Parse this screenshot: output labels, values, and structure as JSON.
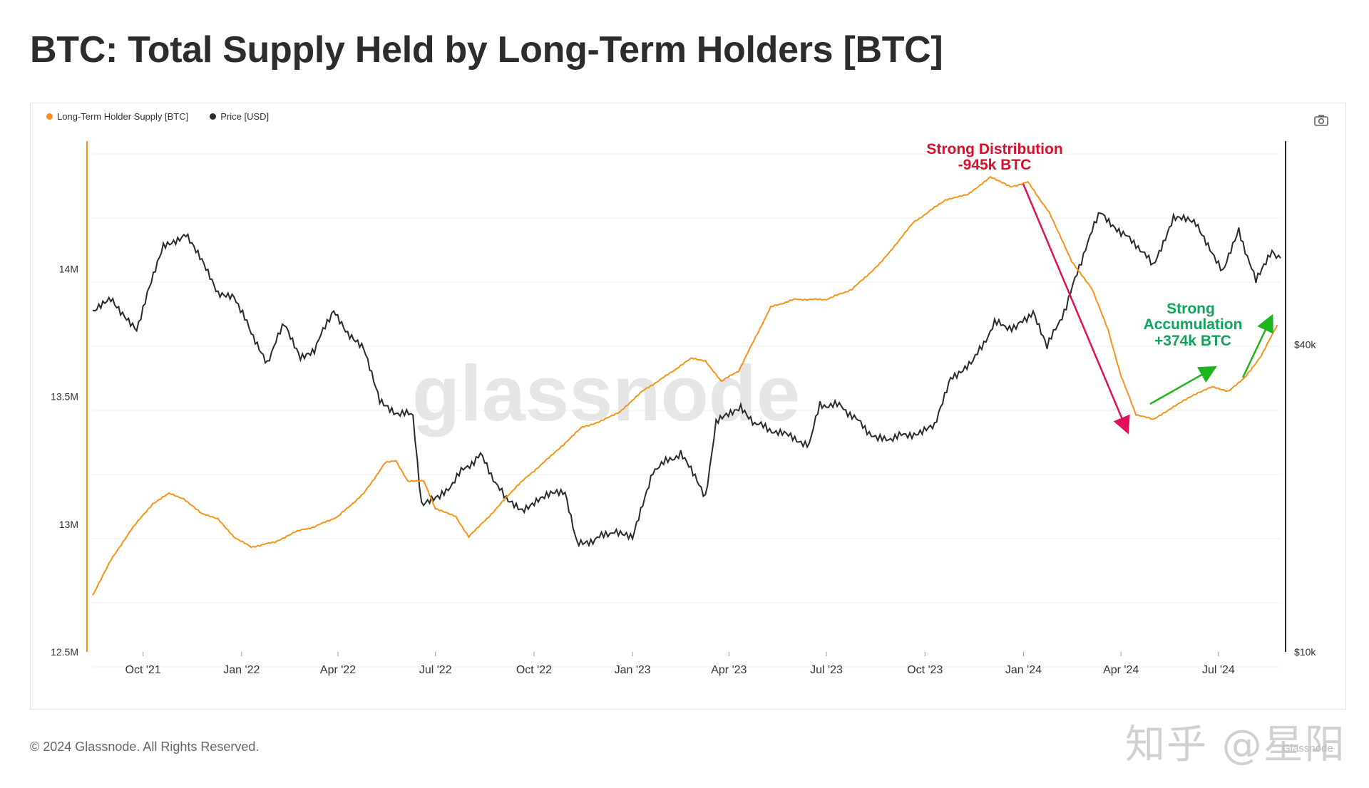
{
  "title": "BTC: Total Supply Held by Long-Term Holders [BTC]",
  "footer": "© 2024 Glassnode. All Rights Reserved.",
  "brand": "Glassnode",
  "watermark": "glassnode",
  "overlay_watermark": "知乎 @星阳",
  "camera_icon": "camera-icon",
  "colors": {
    "lth_supply": "#f7931a",
    "price": "#2b2b2b",
    "distribution": "#e0105a",
    "accumulation": "#1fb51f",
    "dist_text": "#d90f2a",
    "acc_text": "#12a35a"
  },
  "legend": [
    {
      "label": "Long-Term Holder Supply [BTC]",
      "color": "#f7931a"
    },
    {
      "label": "Price [USD]",
      "color": "#2b2b2b"
    }
  ],
  "annotations": {
    "distribution": [
      "Strong Distribution",
      "-945k BTC"
    ],
    "accumulation": [
      "Strong",
      "Accumulation",
      "+374k BTC"
    ]
  },
  "chart_data": {
    "type": "line",
    "x_ticks": [
      "Oct '21",
      "Jan '22",
      "Apr '22",
      "Jul '22",
      "Oct '22",
      "Jan '23",
      "Apr '23",
      "Jul '23",
      "Oct '23",
      "Jan '24",
      "Apr '24",
      "Jul '24"
    ],
    "y_left_ticks": [
      "12.5M",
      "13M",
      "13.5M",
      "14M"
    ],
    "y_left_range": [
      12.5,
      14.5
    ],
    "y_right_ticks": [
      "$10k",
      "$40k"
    ],
    "y_right_range": [
      10000,
      100000
    ],
    "y_right_scale": "log",
    "x_range": [
      "2021-08-15",
      "2024-08-28"
    ],
    "series": [
      {
        "name": "Long-Term Holder Supply [BTC]",
        "axis": "left",
        "points": [
          [
            "2021-08-15",
            12.72
          ],
          [
            "2021-09-01",
            12.86
          ],
          [
            "2021-09-20",
            12.98
          ],
          [
            "2021-10-10",
            13.08
          ],
          [
            "2021-10-25",
            13.12
          ],
          [
            "2021-11-08",
            13.1
          ],
          [
            "2021-11-25",
            13.04
          ],
          [
            "2021-12-10",
            13.02
          ],
          [
            "2021-12-25",
            12.95
          ],
          [
            "2022-01-10",
            12.91
          ],
          [
            "2022-02-01",
            12.93
          ],
          [
            "2022-02-20",
            12.97
          ],
          [
            "2022-03-10",
            12.99
          ],
          [
            "2022-04-01",
            13.03
          ],
          [
            "2022-04-25",
            13.12
          ],
          [
            "2022-05-15",
            13.24
          ],
          [
            "2022-05-25",
            13.25
          ],
          [
            "2022-06-05",
            13.17
          ],
          [
            "2022-06-20",
            13.17
          ],
          [
            "2022-07-01",
            13.06
          ],
          [
            "2022-07-20",
            13.03
          ],
          [
            "2022-08-01",
            12.95
          ],
          [
            "2022-08-20",
            13.03
          ],
          [
            "2022-09-15",
            13.15
          ],
          [
            "2022-10-15",
            13.26
          ],
          [
            "2022-11-15",
            13.38
          ],
          [
            "2022-12-01",
            13.4
          ],
          [
            "2022-12-20",
            13.44
          ],
          [
            "2023-01-10",
            13.52
          ],
          [
            "2023-02-01",
            13.58
          ],
          [
            "2023-02-25",
            13.65
          ],
          [
            "2023-03-10",
            13.64
          ],
          [
            "2023-03-25",
            13.56
          ],
          [
            "2023-04-10",
            13.6
          ],
          [
            "2023-05-10",
            13.85
          ],
          [
            "2023-06-01",
            13.88
          ],
          [
            "2023-07-01",
            13.88
          ],
          [
            "2023-07-25",
            13.92
          ],
          [
            "2023-08-20",
            14.02
          ],
          [
            "2023-09-20",
            14.18
          ],
          [
            "2023-10-20",
            14.27
          ],
          [
            "2023-11-10",
            14.29
          ],
          [
            "2023-12-01",
            14.36
          ],
          [
            "2023-12-20",
            14.32
          ],
          [
            "2024-01-05",
            14.34
          ],
          [
            "2024-01-25",
            14.22
          ],
          [
            "2024-02-15",
            14.03
          ],
          [
            "2024-03-05",
            13.92
          ],
          [
            "2024-03-20",
            13.76
          ],
          [
            "2024-04-01",
            13.58
          ],
          [
            "2024-04-15",
            13.43
          ],
          [
            "2024-05-01",
            13.41
          ],
          [
            "2024-05-20",
            13.46
          ],
          [
            "2024-06-10",
            13.51
          ],
          [
            "2024-06-25",
            13.54
          ],
          [
            "2024-07-10",
            13.52
          ],
          [
            "2024-07-25",
            13.57
          ],
          [
            "2024-08-10",
            13.66
          ],
          [
            "2024-08-25",
            13.78
          ]
        ]
      },
      {
        "name": "Price [USD]",
        "axis": "right",
        "points": [
          [
            "2021-08-15",
            46000
          ],
          [
            "2021-09-01",
            49000
          ],
          [
            "2021-09-10",
            46000
          ],
          [
            "2021-09-25",
            43000
          ],
          [
            "2021-10-05",
            50000
          ],
          [
            "2021-10-20",
            62000
          ],
          [
            "2021-11-10",
            66000
          ],
          [
            "2021-11-25",
            58000
          ],
          [
            "2021-12-10",
            50000
          ],
          [
            "2021-12-25",
            50000
          ],
          [
            "2022-01-10",
            42000
          ],
          [
            "2022-01-25",
            37000
          ],
          [
            "2022-02-10",
            44000
          ],
          [
            "2022-02-25",
            38000
          ],
          [
            "2022-03-10",
            39000
          ],
          [
            "2022-03-28",
            47000
          ],
          [
            "2022-04-10",
            42000
          ],
          [
            "2022-04-25",
            39000
          ],
          [
            "2022-05-10",
            31000
          ],
          [
            "2022-05-25",
            29500
          ],
          [
            "2022-06-10",
            29000
          ],
          [
            "2022-06-18",
            19500
          ],
          [
            "2022-07-05",
            20000
          ],
          [
            "2022-07-25",
            22500
          ],
          [
            "2022-08-12",
            24300
          ],
          [
            "2022-09-05",
            19800
          ],
          [
            "2022-09-20",
            19000
          ],
          [
            "2022-10-05",
            20000
          ],
          [
            "2022-10-30",
            20600
          ],
          [
            "2022-11-10",
            16500
          ],
          [
            "2022-11-25",
            16500
          ],
          [
            "2022-12-15",
            17300
          ],
          [
            "2023-01-01",
            16600
          ],
          [
            "2023-01-20",
            22700
          ],
          [
            "2023-02-15",
            24500
          ],
          [
            "2023-03-10",
            20200
          ],
          [
            "2023-03-20",
            28000
          ],
          [
            "2023-04-12",
            30400
          ],
          [
            "2023-04-25",
            28000
          ],
          [
            "2023-05-15",
            27000
          ],
          [
            "2023-06-15",
            25500
          ],
          [
            "2023-06-25",
            30500
          ],
          [
            "2023-07-15",
            30300
          ],
          [
            "2023-08-18",
            26000
          ],
          [
            "2023-09-15",
            26600
          ],
          [
            "2023-10-10",
            27500
          ],
          [
            "2023-10-25",
            34500
          ],
          [
            "2023-11-15",
            37000
          ],
          [
            "2023-12-05",
            44000
          ],
          [
            "2023-12-25",
            43000
          ],
          [
            "2024-01-10",
            46500
          ],
          [
            "2024-01-23",
            39500
          ],
          [
            "2024-02-10",
            47500
          ],
          [
            "2024-02-28",
            62000
          ],
          [
            "2024-03-13",
            73000
          ],
          [
            "2024-04-01",
            66000
          ],
          [
            "2024-04-15",
            63000
          ],
          [
            "2024-05-01",
            57000
          ],
          [
            "2024-05-20",
            71000
          ],
          [
            "2024-06-10",
            69000
          ],
          [
            "2024-06-25",
            61000
          ],
          [
            "2024-07-05",
            55000
          ],
          [
            "2024-07-20",
            67000
          ],
          [
            "2024-08-05",
            53000
          ],
          [
            "2024-08-20",
            61000
          ],
          [
            "2024-08-28",
            59000
          ]
        ]
      }
    ],
    "grid": true
  }
}
